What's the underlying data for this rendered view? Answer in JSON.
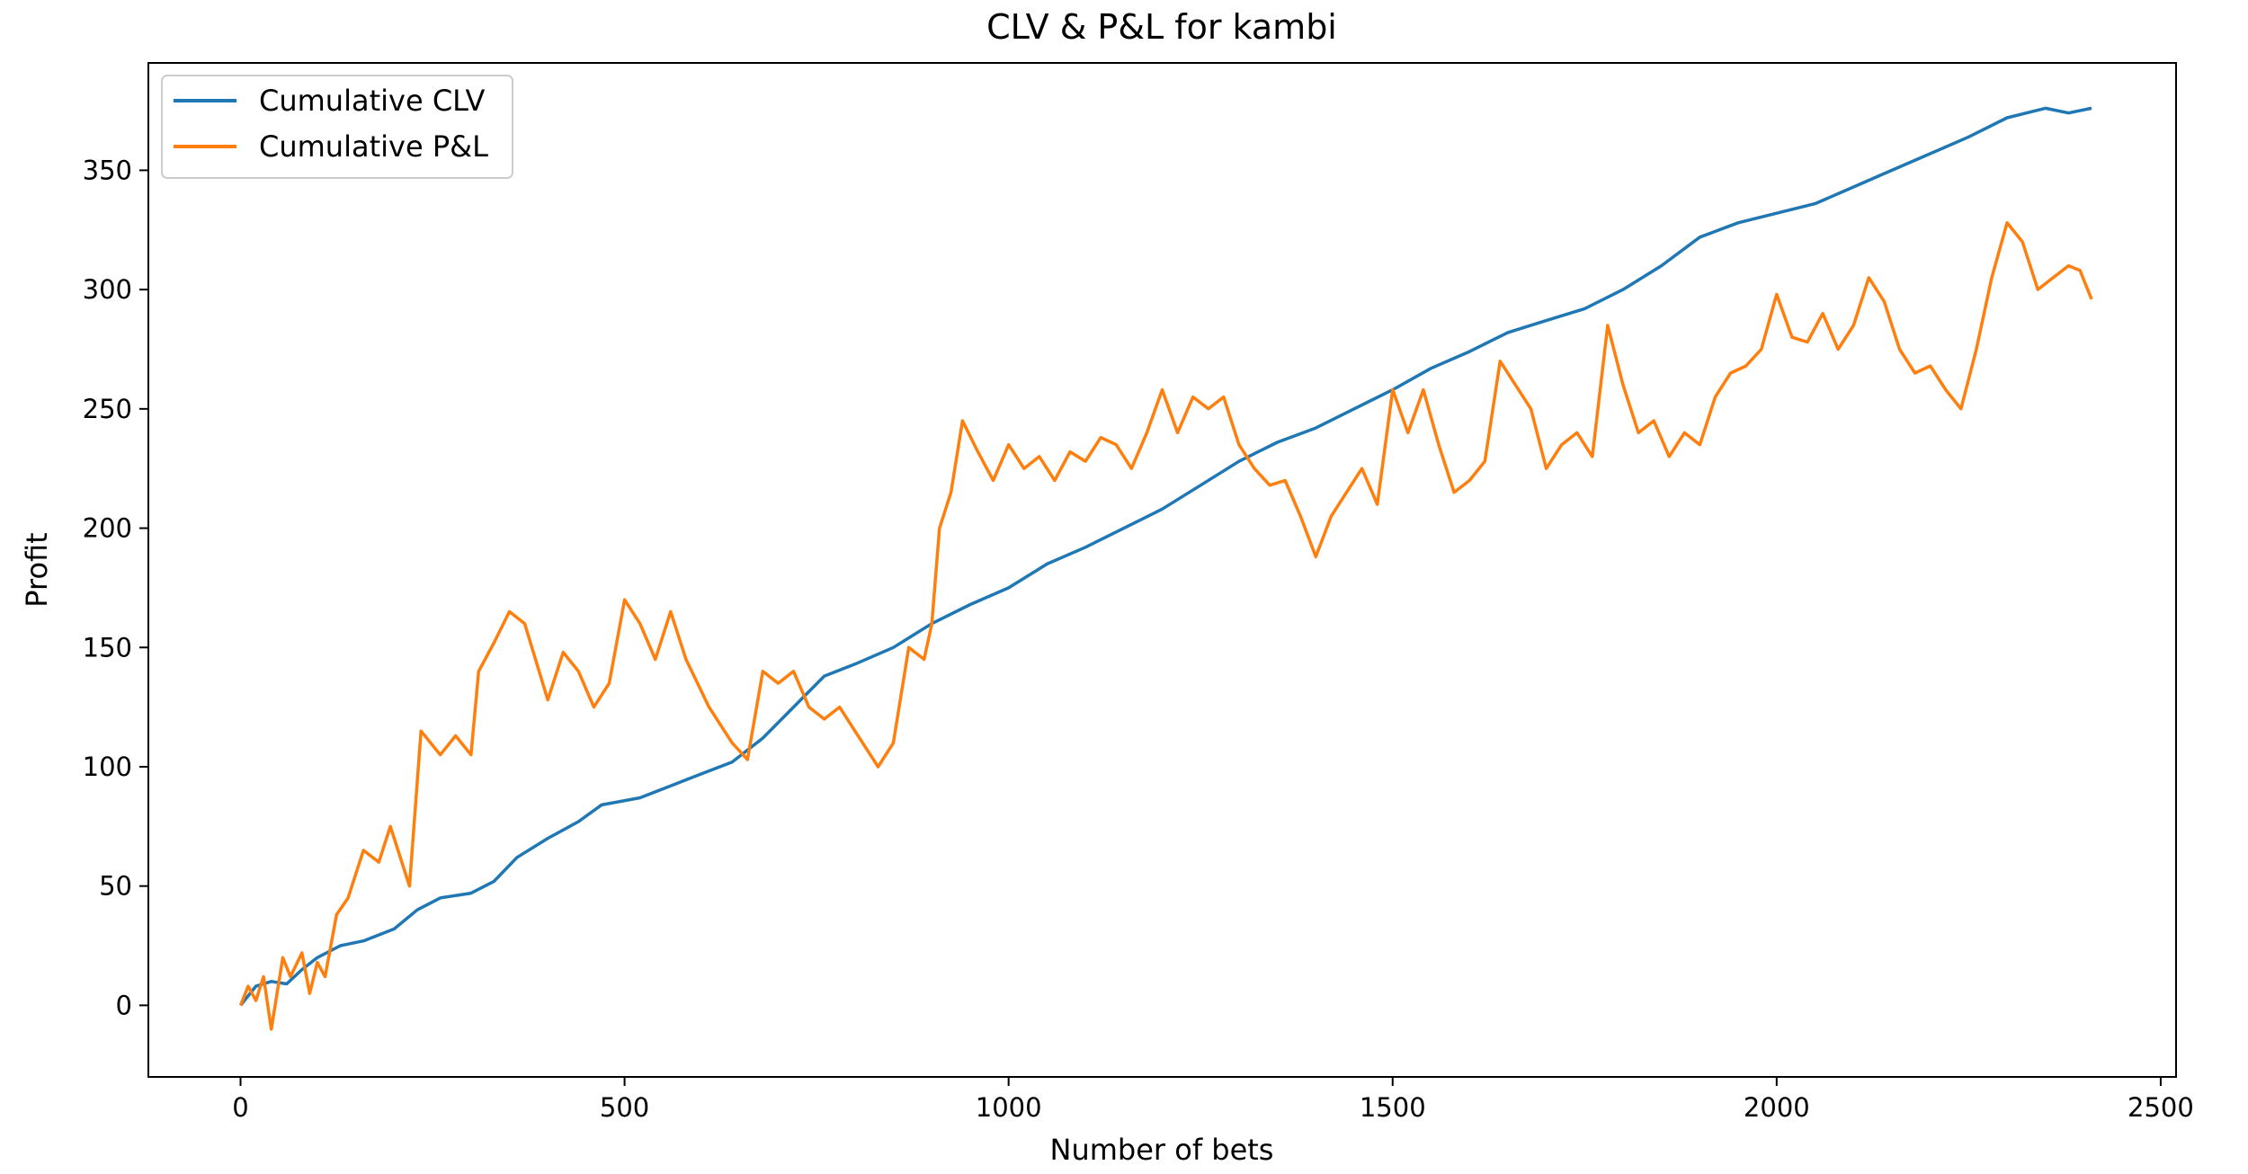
{
  "chart_data": {
    "type": "line",
    "title": "CLV & P&L for kambi",
    "xlabel": "Number of bets",
    "ylabel": "Profit",
    "xlim": [
      -120,
      2520
    ],
    "ylim": [
      -30,
      395
    ],
    "xticks": [
      0,
      500,
      1000,
      1500,
      2000,
      2500
    ],
    "yticks": [
      0,
      50,
      100,
      150,
      200,
      250,
      300,
      350
    ],
    "grid": false,
    "legend_position": "top-left",
    "series": [
      {
        "name": "Cumulative CLV",
        "color": "#1f77b4",
        "points": [
          [
            0,
            0
          ],
          [
            20,
            8
          ],
          [
            40,
            10
          ],
          [
            60,
            9
          ],
          [
            80,
            15
          ],
          [
            100,
            20
          ],
          [
            130,
            25
          ],
          [
            160,
            27
          ],
          [
            200,
            32
          ],
          [
            230,
            40
          ],
          [
            260,
            45
          ],
          [
            300,
            47
          ],
          [
            330,
            52
          ],
          [
            360,
            62
          ],
          [
            400,
            70
          ],
          [
            440,
            77
          ],
          [
            470,
            84
          ],
          [
            520,
            87
          ],
          [
            560,
            92
          ],
          [
            600,
            97
          ],
          [
            640,
            102
          ],
          [
            680,
            112
          ],
          [
            720,
            125
          ],
          [
            760,
            138
          ],
          [
            800,
            143
          ],
          [
            850,
            150
          ],
          [
            900,
            160
          ],
          [
            950,
            168
          ],
          [
            1000,
            175
          ],
          [
            1050,
            185
          ],
          [
            1100,
            192
          ],
          [
            1150,
            200
          ],
          [
            1200,
            208
          ],
          [
            1250,
            218
          ],
          [
            1300,
            228
          ],
          [
            1350,
            236
          ],
          [
            1400,
            242
          ],
          [
            1450,
            250
          ],
          [
            1500,
            258
          ],
          [
            1550,
            267
          ],
          [
            1600,
            274
          ],
          [
            1650,
            282
          ],
          [
            1700,
            287
          ],
          [
            1750,
            292
          ],
          [
            1800,
            300
          ],
          [
            1850,
            310
          ],
          [
            1900,
            322
          ],
          [
            1950,
            328
          ],
          [
            2000,
            332
          ],
          [
            2050,
            336
          ],
          [
            2100,
            343
          ],
          [
            2150,
            350
          ],
          [
            2200,
            357
          ],
          [
            2250,
            364
          ],
          [
            2300,
            372
          ],
          [
            2350,
            376
          ],
          [
            2380,
            374
          ],
          [
            2410,
            376
          ]
        ]
      },
      {
        "name": "Cumulative P&L",
        "color": "#ff7f0e",
        "points": [
          [
            0,
            0
          ],
          [
            10,
            8
          ],
          [
            20,
            2
          ],
          [
            30,
            12
          ],
          [
            40,
            -10
          ],
          [
            55,
            20
          ],
          [
            65,
            12
          ],
          [
            80,
            22
          ],
          [
            90,
            5
          ],
          [
            100,
            18
          ],
          [
            110,
            12
          ],
          [
            125,
            38
          ],
          [
            140,
            45
          ],
          [
            160,
            65
          ],
          [
            180,
            60
          ],
          [
            195,
            75
          ],
          [
            220,
            50
          ],
          [
            235,
            115
          ],
          [
            260,
            105
          ],
          [
            280,
            113
          ],
          [
            300,
            105
          ],
          [
            310,
            140
          ],
          [
            330,
            152
          ],
          [
            350,
            165
          ],
          [
            370,
            160
          ],
          [
            400,
            128
          ],
          [
            420,
            148
          ],
          [
            440,
            140
          ],
          [
            460,
            125
          ],
          [
            480,
            135
          ],
          [
            500,
            170
          ],
          [
            520,
            160
          ],
          [
            540,
            145
          ],
          [
            560,
            165
          ],
          [
            580,
            145
          ],
          [
            610,
            125
          ],
          [
            640,
            110
          ],
          [
            660,
            103
          ],
          [
            680,
            140
          ],
          [
            700,
            135
          ],
          [
            720,
            140
          ],
          [
            740,
            125
          ],
          [
            760,
            120
          ],
          [
            780,
            125
          ],
          [
            800,
            115
          ],
          [
            830,
            100
          ],
          [
            850,
            110
          ],
          [
            870,
            150
          ],
          [
            890,
            145
          ],
          [
            900,
            160
          ],
          [
            910,
            200
          ],
          [
            925,
            215
          ],
          [
            940,
            245
          ],
          [
            960,
            232
          ],
          [
            980,
            220
          ],
          [
            1000,
            235
          ],
          [
            1020,
            225
          ],
          [
            1040,
            230
          ],
          [
            1060,
            220
          ],
          [
            1080,
            232
          ],
          [
            1100,
            228
          ],
          [
            1120,
            238
          ],
          [
            1140,
            235
          ],
          [
            1160,
            225
          ],
          [
            1180,
            240
          ],
          [
            1200,
            258
          ],
          [
            1220,
            240
          ],
          [
            1240,
            255
          ],
          [
            1260,
            250
          ],
          [
            1280,
            255
          ],
          [
            1300,
            235
          ],
          [
            1320,
            225
          ],
          [
            1340,
            218
          ],
          [
            1360,
            220
          ],
          [
            1380,
            205
          ],
          [
            1400,
            188
          ],
          [
            1420,
            205
          ],
          [
            1440,
            215
          ],
          [
            1460,
            225
          ],
          [
            1480,
            210
          ],
          [
            1500,
            258
          ],
          [
            1520,
            240
          ],
          [
            1540,
            258
          ],
          [
            1560,
            235
          ],
          [
            1580,
            215
          ],
          [
            1600,
            220
          ],
          [
            1620,
            228
          ],
          [
            1640,
            270
          ],
          [
            1660,
            260
          ],
          [
            1680,
            250
          ],
          [
            1700,
            225
          ],
          [
            1720,
            235
          ],
          [
            1740,
            240
          ],
          [
            1760,
            230
          ],
          [
            1780,
            285
          ],
          [
            1800,
            260
          ],
          [
            1820,
            240
          ],
          [
            1840,
            245
          ],
          [
            1860,
            230
          ],
          [
            1880,
            240
          ],
          [
            1900,
            235
          ],
          [
            1920,
            255
          ],
          [
            1940,
            265
          ],
          [
            1960,
            268
          ],
          [
            1980,
            275
          ],
          [
            2000,
            298
          ],
          [
            2020,
            280
          ],
          [
            2040,
            278
          ],
          [
            2060,
            290
          ],
          [
            2080,
            275
          ],
          [
            2100,
            285
          ],
          [
            2120,
            305
          ],
          [
            2140,
            295
          ],
          [
            2160,
            275
          ],
          [
            2180,
            265
          ],
          [
            2200,
            268
          ],
          [
            2220,
            258
          ],
          [
            2240,
            250
          ],
          [
            2260,
            275
          ],
          [
            2280,
            305
          ],
          [
            2300,
            328
          ],
          [
            2320,
            320
          ],
          [
            2340,
            300
          ],
          [
            2360,
            305
          ],
          [
            2380,
            310
          ],
          [
            2395,
            308
          ],
          [
            2410,
            296
          ]
        ]
      }
    ]
  }
}
